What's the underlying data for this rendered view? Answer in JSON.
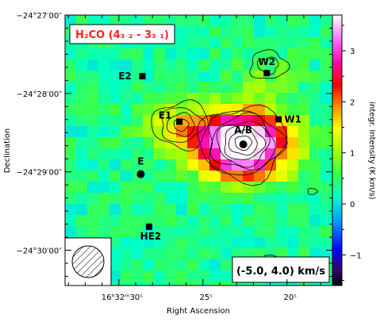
{
  "chart_data": {
    "type": "heatmap",
    "title": "H₂CO (4₃ ₂ - 3₃ ₁)",
    "xlabel": "Right Ascension",
    "ylabel": "Declination",
    "colorbar_label": "integr. Intensity (K km/s)",
    "velocity_range": "(-5.0, 4.0) km/s",
    "x_ticks": [
      {
        "label": "16ʰ32ᵐ30ˢ",
        "value": 30
      },
      {
        "label": "25ˢ",
        "value": 25
      },
      {
        "label": "20ˢ",
        "value": 20
      }
    ],
    "y_ticks": [
      {
        "label": "−24°27′00″",
        "value": -27.0
      },
      {
        "label": "−24°28′00″",
        "value": -28.0
      },
      {
        "label": "−24°29′00″",
        "value": -29.0
      },
      {
        "label": "−24°30′00″",
        "value": -30.0
      }
    ],
    "xlim": [
      33.2,
      17.3
    ],
    "ylim": [
      -30.45,
      -27.0
    ],
    "colorbar": {
      "ticks": [
        3,
        2,
        1,
        0,
        -1
      ],
      "range": [
        -1.6,
        3.7
      ]
    },
    "sources": [
      {
        "name": "E2",
        "ra": 28.6,
        "dec": -27.78,
        "marker": "square"
      },
      {
        "name": "W2",
        "ra": 21.2,
        "dec": -27.74,
        "marker": "square"
      },
      {
        "name": "E1",
        "ra": 26.4,
        "dec": -28.36,
        "marker": "square"
      },
      {
        "name": "W1",
        "ra": 20.5,
        "dec": -28.33,
        "marker": "square"
      },
      {
        "name": "A/B",
        "ra": 22.6,
        "dec": -28.65,
        "marker": "circle"
      },
      {
        "name": "E",
        "ra": 28.7,
        "dec": -29.03,
        "marker": "circle"
      },
      {
        "name": "HE2",
        "ra": 28.2,
        "dec": -29.7,
        "marker": "square"
      }
    ],
    "grid": false,
    "beam": "bottom-left"
  }
}
